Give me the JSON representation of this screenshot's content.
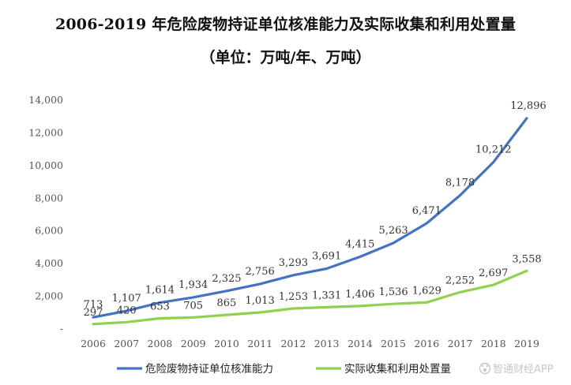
{
  "title_line1": "2006-2019 年危险废物持证单位核准能力及实际收集和利用处置量",
  "title_line2": "（单位：万吨/年、万吨）",
  "watermark": "智通财经APP",
  "watermark_icon": "paw-logo-icon",
  "chart_data": {
    "type": "line",
    "title": "2006-2019 年危险废物持证单位核准能力及实际收集和利用处置量",
    "subtitle": "（单位：万吨/年、万吨）",
    "x": [
      "2006",
      "2007",
      "2008",
      "2009",
      "2010",
      "2011",
      "2012",
      "2013",
      "2014",
      "2015",
      "2016",
      "2017",
      "2018",
      "2019"
    ],
    "ylim": [
      0,
      14000
    ],
    "yticks": [
      0,
      2000,
      4000,
      6000,
      8000,
      10000,
      12000,
      14000
    ],
    "ytick_labels": [
      "-",
      "2,000",
      "4,000",
      "6,000",
      "8,000",
      "10,000",
      "12,000",
      "14,000"
    ],
    "grid": false,
    "legend_position": "bottom",
    "series": [
      {
        "name": "危险废物持证单位核准能力",
        "color": "#4472C4",
        "values": [
          713,
          1107,
          1614,
          1934,
          2325,
          2756,
          3293,
          3691,
          4415,
          5263,
          6471,
          8178,
          10212,
          12896
        ],
        "labels": [
          "713",
          "1,107",
          "1,614",
          "1,934",
          "2,325",
          "2,756",
          "3,293",
          "3,691",
          "4,415",
          "5,263",
          "6,471",
          "8,178",
          "10,212",
          "12,896"
        ]
      },
      {
        "name": "实际收集和利用处置量",
        "color": "#92D050",
        "values": [
          297,
          420,
          653,
          705,
          865,
          1013,
          1253,
          1331,
          1406,
          1536,
          1629,
          2252,
          2697,
          3558
        ],
        "labels": [
          "297",
          "420",
          "653",
          "705",
          "865",
          "1,013",
          "1,253",
          "1,331",
          "1,406",
          "1,536",
          "1,629",
          "2,252",
          "2,697",
          "3,558"
        ]
      }
    ]
  }
}
